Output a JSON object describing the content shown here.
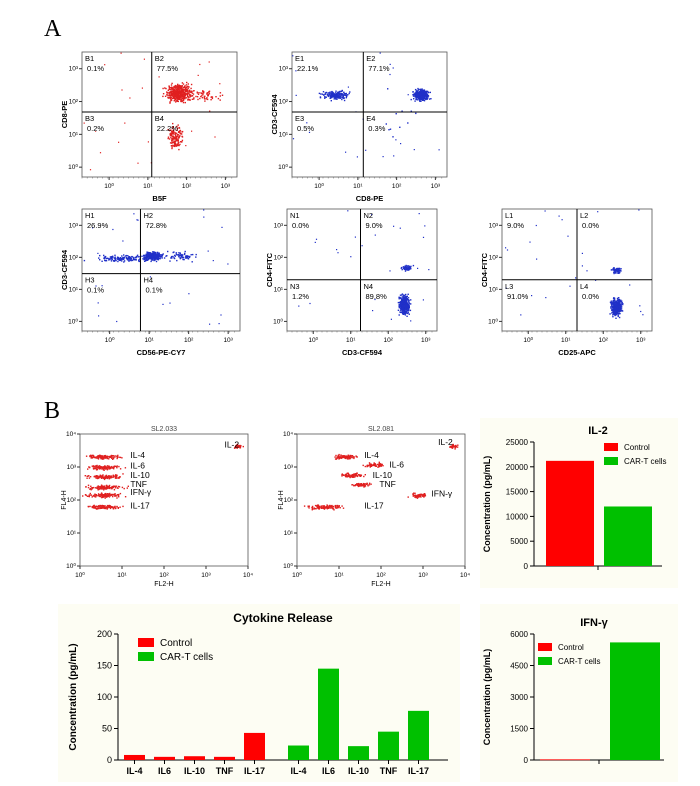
{
  "figure": {
    "panel_a_label": "A",
    "panel_b_label": "B"
  },
  "flow_plots": [
    {
      "id": "p1",
      "xlabel": "B5F",
      "ylabel": "CD8-PE",
      "xticks": [
        "10⁰",
        "10¹",
        "10²",
        "10³"
      ],
      "yticks": [
        "10⁰",
        "10¹",
        "10²",
        "10³"
      ],
      "quadrants": [
        {
          "id": "B1",
          "pct": "0.1%"
        },
        {
          "id": "B2",
          "pct": "77.5%"
        },
        {
          "id": "B3",
          "pct": "0.2%"
        },
        {
          "id": "B4",
          "pct": "22.2%"
        }
      ],
      "dot_color": "#e02020"
    },
    {
      "id": "p2",
      "xlabel": "CD8-PE",
      "ylabel": "CD3-CF594",
      "xticks": [
        "10⁰",
        "10¹",
        "10²",
        "10³"
      ],
      "yticks": [
        "10⁰",
        "10¹",
        "10²",
        "10³"
      ],
      "quadrants": [
        {
          "id": "E1",
          "pct": "22.1%"
        },
        {
          "id": "E2",
          "pct": "77.1%"
        },
        {
          "id": "E3",
          "pct": "0.5%"
        },
        {
          "id": "E4",
          "pct": "0.3%"
        }
      ],
      "dot_color": "#2030c8"
    },
    {
      "id": "p3",
      "xlabel": "CD56-PE-CY7",
      "ylabel": "CD3-CF594",
      "xticks": [
        "10⁰",
        "10¹",
        "10²",
        "10³"
      ],
      "yticks": [
        "10⁰",
        "10¹",
        "10²",
        "10³"
      ],
      "quadrants": [
        {
          "id": "H1",
          "pct": "26.9%"
        },
        {
          "id": "H2",
          "pct": "72.8%"
        },
        {
          "id": "H3",
          "pct": "0.1%"
        },
        {
          "id": "H4",
          "pct": "0.1%"
        }
      ],
      "dot_color": "#2030c8"
    },
    {
      "id": "p4",
      "xlabel": "CD3-CF594",
      "ylabel": "CD4-FITC",
      "xticks": [
        "10⁰",
        "10¹",
        "10²",
        "10³"
      ],
      "yticks": [
        "10⁰",
        "10¹",
        "10²",
        "10³"
      ],
      "quadrants": [
        {
          "id": "N1",
          "pct": "0.0%"
        },
        {
          "id": "N2",
          "pct": "9.0%"
        },
        {
          "id": "N3",
          "pct": "1.2%"
        },
        {
          "id": "N4",
          "pct": "89.8%"
        }
      ],
      "dot_color": "#2030c8"
    },
    {
      "id": "p5",
      "xlabel": "CD25-APC",
      "ylabel": "CD4-FITC",
      "xticks": [
        "10⁰",
        "10¹",
        "10²",
        "10³"
      ],
      "yticks": [
        "10⁰",
        "10¹",
        "10²",
        "10³"
      ],
      "quadrants": [
        {
          "id": "L1",
          "pct": "9.0%"
        },
        {
          "id": "L2",
          "pct": "0.0%"
        },
        {
          "id": "L3",
          "pct": "91.0%"
        },
        {
          "id": "L4",
          "pct": "0.0%"
        }
      ],
      "dot_color": "#2030c8"
    }
  ],
  "cyto_plots": [
    {
      "id": "c1",
      "title": "SL2.033",
      "xlabel": "FL2-H",
      "ylabel": "FL4-H",
      "xticks": [
        "10⁰",
        "10¹",
        "10²",
        "10³",
        "10⁴"
      ],
      "yticks": [
        "10⁰",
        "10¹",
        "10²",
        "10³",
        "10⁴"
      ],
      "labels": [
        "IL-2",
        "IL-4",
        "IL-6",
        "IL-10",
        "TNF",
        "IFN-γ",
        "IL-17"
      ]
    },
    {
      "id": "c2",
      "title": "SL2.081",
      "xlabel": "FL2-H",
      "ylabel": "FL4-H",
      "xticks": [
        "10⁰",
        "10¹",
        "10²",
        "10³",
        "10⁴"
      ],
      "yticks": [
        "10⁰",
        "10¹",
        "10²",
        "10³",
        "10⁴"
      ],
      "labels": [
        "IL-2",
        "IL-4",
        "IL-6",
        "IL-10",
        "TNF",
        "IFN-γ",
        "IL-17"
      ]
    }
  ],
  "chart_data": [
    {
      "id": "il2",
      "type": "bar",
      "title": "IL-2",
      "ylabel": "Concentration (pg/mL)",
      "ylim": [
        0,
        25000
      ],
      "yticks": [
        0,
        5000,
        10000,
        15000,
        20000,
        25000
      ],
      "categories": [
        ""
      ],
      "series": [
        {
          "name": "Control",
          "values": [
            21200
          ],
          "color": "#ff0000"
        },
        {
          "name": "CAR-T cells",
          "values": [
            12000
          ],
          "color": "#00c000"
        }
      ],
      "legend": "top-right"
    },
    {
      "id": "cytokine",
      "type": "bar",
      "title": "Cytokine Release",
      "ylabel": "Concentration (pg/mL)",
      "ylim": [
        0,
        200
      ],
      "yticks": [
        0,
        50,
        100,
        150,
        200
      ],
      "categories": [
        "IL-4",
        "IL6",
        "IL-10",
        "TNF",
        "IL-17",
        "IL-4",
        "IL6",
        "IL-10",
        "TNF",
        "IL-17"
      ],
      "series": [
        {
          "name": "Control",
          "values": [
            8,
            5,
            6,
            5,
            43,
            null,
            null,
            null,
            null,
            null
          ],
          "color": "#ff0000"
        },
        {
          "name": "CAR-T cells",
          "values": [
            null,
            null,
            null,
            null,
            null,
            23,
            145,
            22,
            45,
            78
          ],
          "color": "#00c000"
        }
      ],
      "legend": "top-left"
    },
    {
      "id": "ifng",
      "type": "bar",
      "title": "IFN-γ",
      "ylabel": "Concentration (pg/mL)",
      "ylim": [
        0,
        6000
      ],
      "yticks": [
        0,
        1500,
        3000,
        4500,
        6000
      ],
      "categories": [
        ""
      ],
      "series": [
        {
          "name": "Control",
          "values": [
            30
          ],
          "color": "#ff0000"
        },
        {
          "name": "CAR-T cells",
          "values": [
            5600
          ],
          "color": "#00c000"
        }
      ],
      "legend": "top-left"
    }
  ]
}
